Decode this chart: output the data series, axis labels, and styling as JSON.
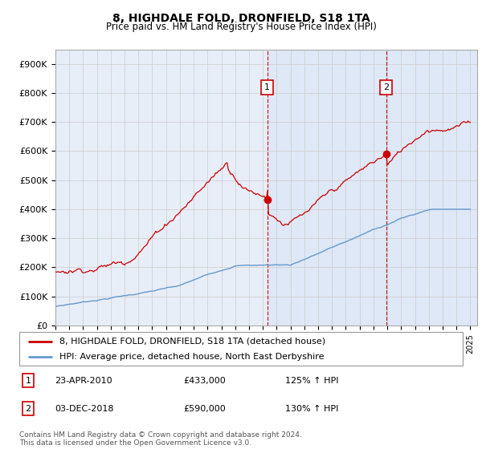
{
  "title": "8, HIGHDALE FOLD, DRONFIELD, S18 1TA",
  "subtitle": "Price paid vs. HM Land Registry's House Price Index (HPI)",
  "ylabel_ticks": [
    "£0",
    "£100K",
    "£200K",
    "£300K",
    "£400K",
    "£500K",
    "£600K",
    "£700K",
    "£800K",
    "£900K"
  ],
  "ytick_vals": [
    0,
    100000,
    200000,
    300000,
    400000,
    500000,
    600000,
    700000,
    800000,
    900000
  ],
  "ylim": [
    0,
    950000
  ],
  "sale1_year": 2010.31,
  "sale1_price": 433000,
  "sale2_year": 2018.92,
  "sale2_price": 590000,
  "legend_red_label": "8, HIGHDALE FOLD, DRONFIELD, S18 1TA (detached house)",
  "legend_blue_label": "HPI: Average price, detached house, North East Derbyshire",
  "footer": "Contains HM Land Registry data © Crown copyright and database right 2024.\nThis data is licensed under the Open Government Licence v3.0.",
  "line_color": "#cc0000",
  "hpi_color": "#6699cc",
  "plot_bg": "#e8eef8",
  "grid_color": "#cccccc",
  "shade_color": "#c8d8f0"
}
